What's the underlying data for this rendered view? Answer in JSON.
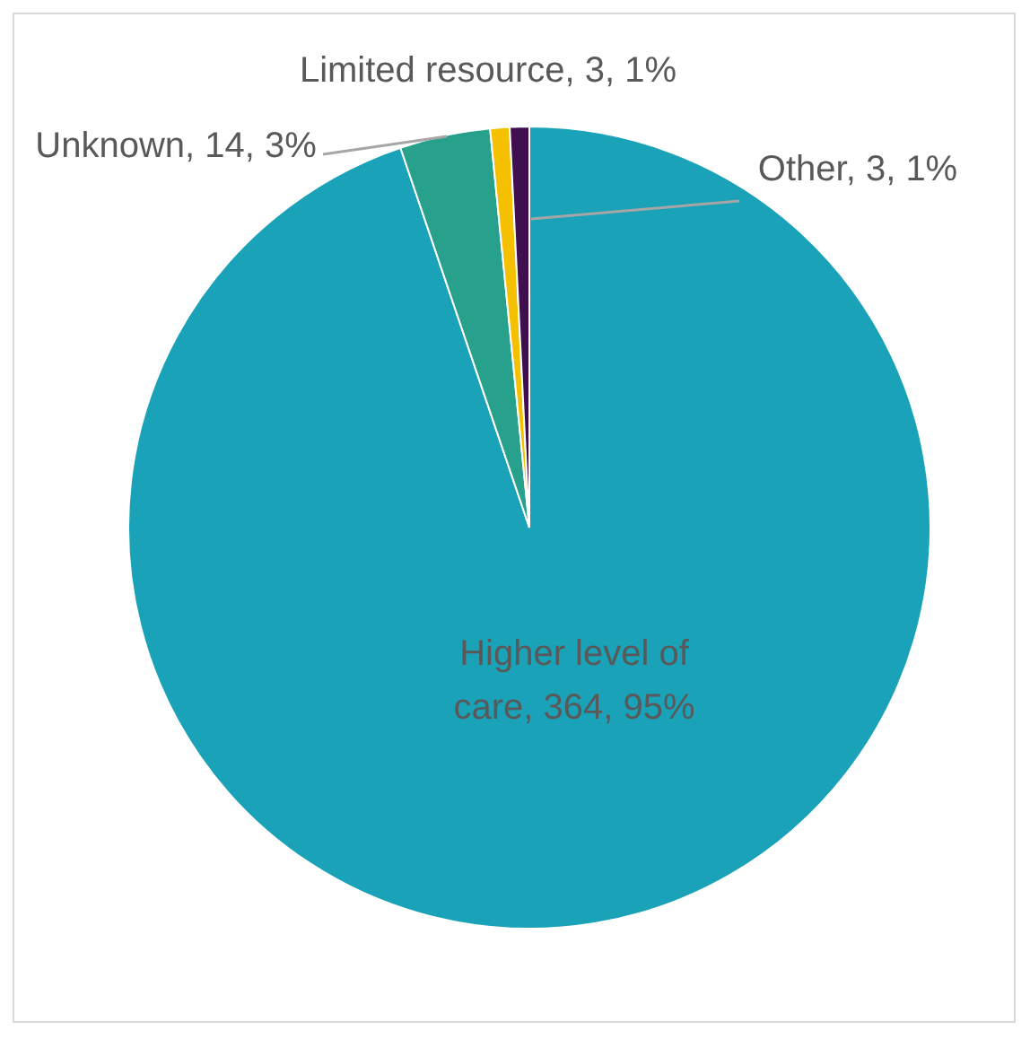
{
  "chart_data": {
    "type": "pie",
    "categories": [
      "Higher level of care",
      "Unknown",
      "Limited resource",
      "Other"
    ],
    "values": [
      364,
      14,
      3,
      3
    ],
    "colors": [
      "#1aa2b8",
      "#27a08c",
      "#f5c000",
      "#3f0f4f"
    ],
    "value_labels": [
      "364, 95%",
      "14, 3%",
      "3, 1%",
      "3, 1%"
    ],
    "legend": false
  }
}
